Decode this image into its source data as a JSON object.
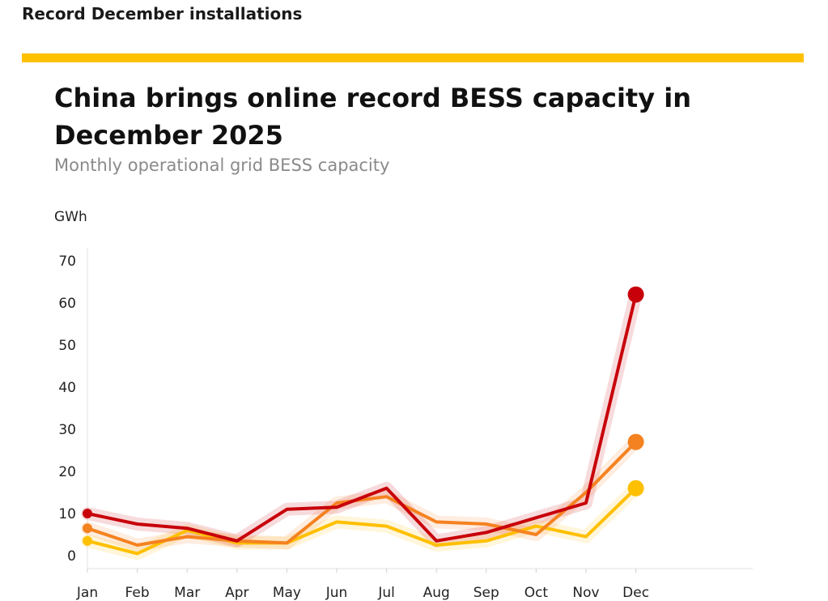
{
  "header": {
    "section_title": "Record December installations",
    "accent_color": "#FFC000"
  },
  "chart_data": {
    "type": "line",
    "title": "China brings online record BESS capacity in December 2025",
    "subtitle": "Monthly operational grid BESS capacity",
    "ylabel": "GWh",
    "xlabel": "",
    "ylim": [
      0,
      70
    ],
    "yticks": [
      0,
      10,
      20,
      30,
      40,
      50,
      60,
      70
    ],
    "categories": [
      "Jan",
      "Feb",
      "Mar",
      "Apr",
      "May",
      "Jun",
      "Jul",
      "Aug",
      "Sep",
      "Oct",
      "Nov",
      "Dec"
    ],
    "grid": false,
    "legend": "none",
    "series": [
      {
        "color": "#FFC000",
        "values": [
          3.5,
          0.5,
          6.0,
          3.0,
          3.0,
          8.0,
          7.0,
          2.5,
          3.5,
          7.0,
          4.5,
          16.0
        ]
      },
      {
        "color": "#F58220",
        "values": [
          6.5,
          2.5,
          4.5,
          3.5,
          3.0,
          12.5,
          14.0,
          8.0,
          7.5,
          5.0,
          15.0,
          27.0
        ]
      },
      {
        "color": "#C8000A",
        "values": [
          10.0,
          7.5,
          6.5,
          3.5,
          11.0,
          11.5,
          16.0,
          3.5,
          5.5,
          9.0,
          12.5,
          62.0
        ]
      }
    ]
  }
}
